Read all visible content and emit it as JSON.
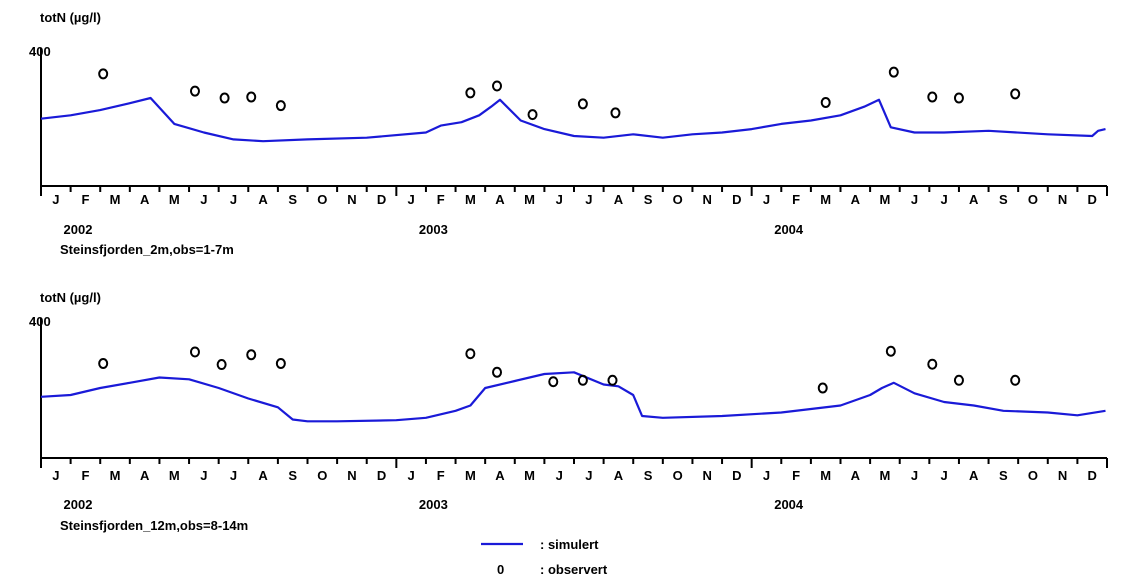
{
  "chart_data": [
    {
      "type": "line",
      "ylabel": "totN (µg/l)",
      "ylim": [
        0,
        400
      ],
      "yticks": [
        400
      ],
      "month_labels": [
        "J",
        "F",
        "M",
        "A",
        "M",
        "J",
        "J",
        "A",
        "S",
        "O",
        "N",
        "D",
        "J",
        "F",
        "M",
        "A",
        "M",
        "J",
        "J",
        "A",
        "S",
        "O",
        "N",
        "D",
        "J",
        "F",
        "M",
        "A",
        "M",
        "J",
        "J",
        "A",
        "S",
        "O",
        "N",
        "D"
      ],
      "year_labels": [
        "2002",
        "2003",
        "2004"
      ],
      "caption": "Steinsfjorden_2m,obs=1-7m",
      "series": [
        {
          "kind": "simulated",
          "x": [
            0,
            1,
            2,
            3,
            3.7,
            4.5,
            5.5,
            6.5,
            7.5,
            9,
            11,
            13,
            13.5,
            14.2,
            14.8,
            15.2,
            15.5,
            16.2,
            17,
            18,
            19,
            20,
            21,
            22,
            23,
            24,
            25,
            26,
            27,
            27.8,
            28.3,
            28.7,
            29.5,
            30.5,
            32,
            34,
            35.5,
            35.7,
            35.95
          ],
          "values": [
            195,
            205,
            220,
            240,
            255,
            180,
            155,
            135,
            130,
            135,
            140,
            155,
            175,
            185,
            205,
            230,
            250,
            190,
            165,
            145,
            140,
            150,
            140,
            150,
            155,
            165,
            180,
            190,
            205,
            230,
            250,
            170,
            155,
            155,
            160,
            150,
            145,
            160,
            165
          ]
        },
        {
          "kind": "observed",
          "x": [
            2.1,
            5.2,
            6.2,
            7.1,
            8.1,
            14.5,
            15.4,
            16.6,
            18.3,
            19.4,
            26.5,
            28.8,
            30.1,
            31,
            32.9
          ],
          "values": [
            325,
            275,
            255,
            258,
            233,
            270,
            290,
            207,
            238,
            212,
            242,
            330,
            258,
            255,
            267
          ]
        }
      ]
    },
    {
      "type": "line",
      "ylabel": "totN (µg/l)",
      "ylim": [
        0,
        400
      ],
      "yticks": [
        400
      ],
      "month_labels": [
        "J",
        "F",
        "M",
        "A",
        "M",
        "J",
        "J",
        "A",
        "S",
        "O",
        "N",
        "D",
        "J",
        "F",
        "M",
        "A",
        "M",
        "J",
        "J",
        "A",
        "S",
        "O",
        "N",
        "D",
        "J",
        "F",
        "M",
        "A",
        "M",
        "J",
        "J",
        "A",
        "S",
        "O",
        "N",
        "D"
      ],
      "year_labels": [
        "2002",
        "2003",
        "2004"
      ],
      "caption": "Steinsfjorden_12m,obs=8-14m",
      "series": [
        {
          "kind": "simulated",
          "x": [
            0,
            1,
            2,
            3,
            4,
            5,
            6,
            7,
            8,
            8.5,
            9,
            10,
            12,
            13,
            14,
            14.5,
            15,
            16,
            17,
            18,
            19,
            19.5,
            20,
            20.3,
            21,
            23,
            25,
            27,
            28,
            28.4,
            28.8,
            29.5,
            30.5,
            31.5,
            32.5,
            34,
            35,
            35.95
          ],
          "values": [
            175,
            180,
            200,
            215,
            230,
            225,
            200,
            170,
            145,
            110,
            105,
            105,
            108,
            115,
            135,
            150,
            200,
            220,
            240,
            245,
            210,
            205,
            180,
            120,
            115,
            120,
            130,
            150,
            180,
            200,
            215,
            185,
            160,
            150,
            135,
            130,
            122,
            135
          ]
        },
        {
          "kind": "observed",
          "x": [
            2.1,
            5.2,
            6.1,
            7.1,
            8.1,
            14.5,
            15.4,
            17.3,
            18.3,
            19.3,
            26.4,
            28.7,
            30.1,
            31,
            32.9
          ],
          "values": [
            270,
            303,
            267,
            295,
            270,
            298,
            245,
            218,
            222,
            222,
            200,
            305,
            268,
            222,
            222
          ]
        }
      ]
    }
  ],
  "legend": {
    "simulated_label": ": simulert",
    "observed_symbol": "0",
    "observed_label": ": observert"
  }
}
